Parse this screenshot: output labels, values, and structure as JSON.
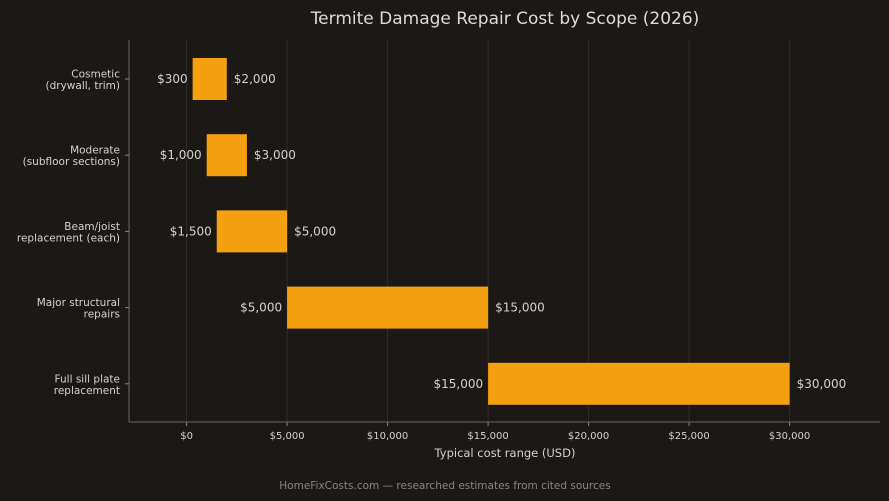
{
  "chart_data": {
    "type": "bar",
    "orientation": "horizontal",
    "subtype": "floating-range",
    "title": "Termite Damage Repair Cost by Scope (2026)",
    "xlabel": "Typical cost range (USD)",
    "ylabel": "",
    "xlim": [
      -2800,
      34500
    ],
    "x_ticks": [
      0,
      5000,
      10000,
      15000,
      20000,
      25000,
      30000
    ],
    "x_tick_labels": [
      "$0",
      "$5,000",
      "$10,000",
      "$15,000",
      "$20,000",
      "$25,000",
      "$30,000"
    ],
    "grid": true,
    "legend": "none",
    "categories": [
      [
        "Cosmetic",
        "(drywall, trim)"
      ],
      [
        "Moderate",
        "(subfloor sections)"
      ],
      [
        "Beam/joist",
        "replacement (each)"
      ],
      [
        "Major structural",
        "repairs"
      ],
      [
        "Full sill plate",
        "replacement"
      ]
    ],
    "low": [
      300,
      1000,
      1500,
      5000,
      15000
    ],
    "high": [
      2000,
      3000,
      5000,
      15000,
      30000
    ],
    "low_labels": [
      "$300",
      "$1,000",
      "$1,500",
      "$5,000",
      "$15,000"
    ],
    "high_labels": [
      "$2,000",
      "$3,000",
      "$5,000",
      "$15,000",
      "$30,000"
    ],
    "bar_color": "#f5a00f",
    "background_color": "#1c1816",
    "footer": "HomeFixCosts.com — researched estimates from cited sources"
  }
}
